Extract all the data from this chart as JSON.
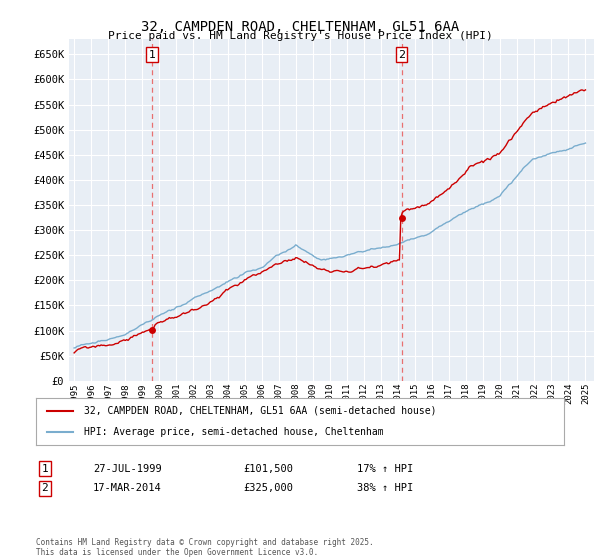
{
  "title": "32, CAMPDEN ROAD, CHELTENHAM, GL51 6AA",
  "subtitle": "Price paid vs. HM Land Registry's House Price Index (HPI)",
  "sale1_date": "27-JUL-1999",
  "sale1_price": 101500,
  "sale1_hpi": "17% ↑ HPI",
  "sale1_x": 1999.58,
  "sale2_date": "17-MAR-2014",
  "sale2_price": 325000,
  "sale2_hpi": "38% ↑ HPI",
  "sale2_x": 2014.21,
  "legend_line1": "32, CAMPDEN ROAD, CHELTENHAM, GL51 6AA (semi-detached house)",
  "legend_line2": "HPI: Average price, semi-detached house, Cheltenham",
  "footer": "Contains HM Land Registry data © Crown copyright and database right 2025.\nThis data is licensed under the Open Government Licence v3.0.",
  "line_color_red": "#cc0000",
  "line_color_blue": "#7aadce",
  "vline_color": "#e87070",
  "background_color": "#ffffff",
  "plot_bg_color": "#e8eef5",
  "grid_color": "#ffffff",
  "ylim": [
    0,
    680000
  ],
  "yticks": [
    0,
    50000,
    100000,
    150000,
    200000,
    250000,
    300000,
    350000,
    400000,
    450000,
    500000,
    550000,
    600000,
    650000
  ],
  "xlim_start": 1994.7,
  "xlim_end": 2025.5
}
